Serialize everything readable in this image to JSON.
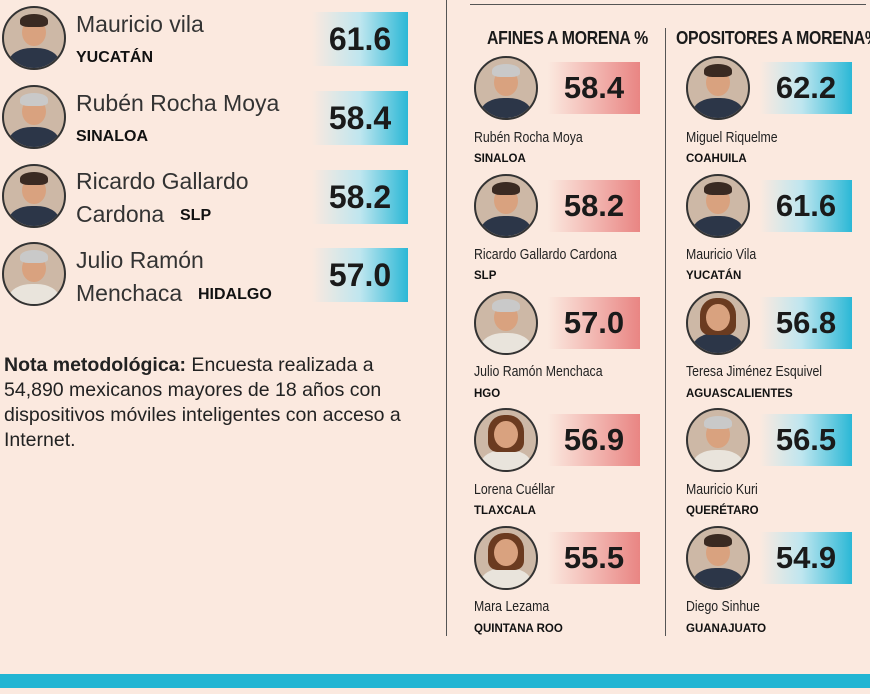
{
  "left_ranking": [
    {
      "name_line1": "Mauricio vila",
      "state": "YUCATÁN",
      "value": "61.6"
    },
    {
      "name_line1": "Rubén Rocha Moya",
      "state": "SINALOA",
      "value": "58.4"
    },
    {
      "name_line1": "Ricardo Gallardo",
      "name_line2": "Cardona",
      "state": "SLP",
      "value": "58.2"
    },
    {
      "name_line1": "Julio Ramón",
      "name_line2": "Menchaca",
      "state": "HIDALGO",
      "value": "57.0"
    }
  ],
  "note": {
    "bold": "Nota metodológica:",
    "text": " Encuesta realizada a 54,890 mexicanos mayores de 18 años con dispositivos móviles inteligentes con acceso a Internet."
  },
  "afines": {
    "header": "AFINES A MORENA %",
    "items": [
      {
        "name": "Rubén Rocha Moya",
        "state": "SINALOA",
        "value": "58.4"
      },
      {
        "name": "Ricardo Gallardo Cardona",
        "state": "SLP",
        "value": "58.2"
      },
      {
        "name": "Julio Ramón Menchaca",
        "state": "HGO",
        "value": "57.0"
      },
      {
        "name": "Lorena Cuéllar",
        "state": "TLAXCALA",
        "value": "56.9"
      },
      {
        "name": "Mara Lezama",
        "state": "QUINTANA ROO",
        "value": "55.5"
      }
    ]
  },
  "opositores": {
    "header": "OPOSITORES A MORENA%",
    "items": [
      {
        "name": "Miguel Riquelme",
        "state": "COAHUILA",
        "value": "62.2"
      },
      {
        "name": "Mauricio Vila",
        "state": "YUCATÁN",
        "value": "61.6"
      },
      {
        "name": "Teresa Jiménez Esquivel",
        "state": "AGUASCALIENTES",
        "value": "56.8"
      },
      {
        "name": "Mauricio Kuri",
        "state": "QUERÉTARO",
        "value": "56.5"
      },
      {
        "name": "Diego Sinhue",
        "state": "GUANAJUATO",
        "value": "54.9"
      }
    ]
  }
}
